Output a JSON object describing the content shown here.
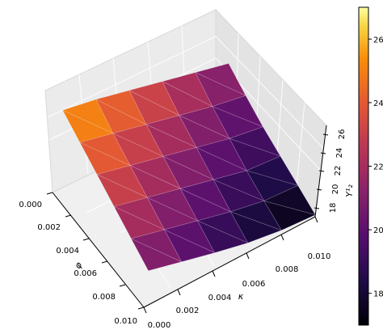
{
  "chart_data": {
    "type": "surface3d",
    "title": "",
    "xlabel": "φ",
    "ylabel": "κ",
    "zlabel": "Y¹₂",
    "x": [
      0.0,
      0.002,
      0.004,
      0.006,
      0.008,
      0.01
    ],
    "y": [
      0.0,
      0.002,
      0.004,
      0.006,
      0.008,
      0.01
    ],
    "z": [
      [
        26.0,
        25.2,
        24.2,
        23.2,
        22.2,
        21.2
      ],
      [
        25.0,
        24.0,
        23.0,
        22.0,
        21.0,
        20.2
      ],
      [
        24.0,
        23.0,
        22.0,
        21.0,
        20.0,
        19.3
      ],
      [
        23.0,
        22.0,
        21.0,
        20.0,
        19.0,
        18.6
      ],
      [
        22.0,
        21.0,
        20.0,
        19.0,
        18.2,
        17.9
      ],
      [
        21.0,
        20.0,
        19.0,
        18.1,
        17.5,
        17.2
      ]
    ],
    "xlim": [
      0.0,
      0.01
    ],
    "ylim": [
      0.0,
      0.01
    ],
    "zlim": [
      17.0,
      27.0
    ],
    "x_ticks": [
      "0.000",
      "0.002",
      "0.004",
      "0.006",
      "0.008",
      "0.010"
    ],
    "y_ticks": [
      "0.000",
      "0.002",
      "0.004",
      "0.006",
      "0.008",
      "0.010"
    ],
    "z_ticks": [
      "18",
      "20",
      "22",
      "24",
      "26"
    ],
    "z_tick_values": [
      18,
      20,
      22,
      24,
      26
    ],
    "colormap": "inferno",
    "colorbar_ticks": [
      "18",
      "20",
      "22",
      "24",
      "26"
    ],
    "colorbar_tick_values": [
      18,
      20,
      22,
      24,
      26
    ],
    "colorbar_range": [
      17.0,
      27.0
    ],
    "grid": true
  }
}
